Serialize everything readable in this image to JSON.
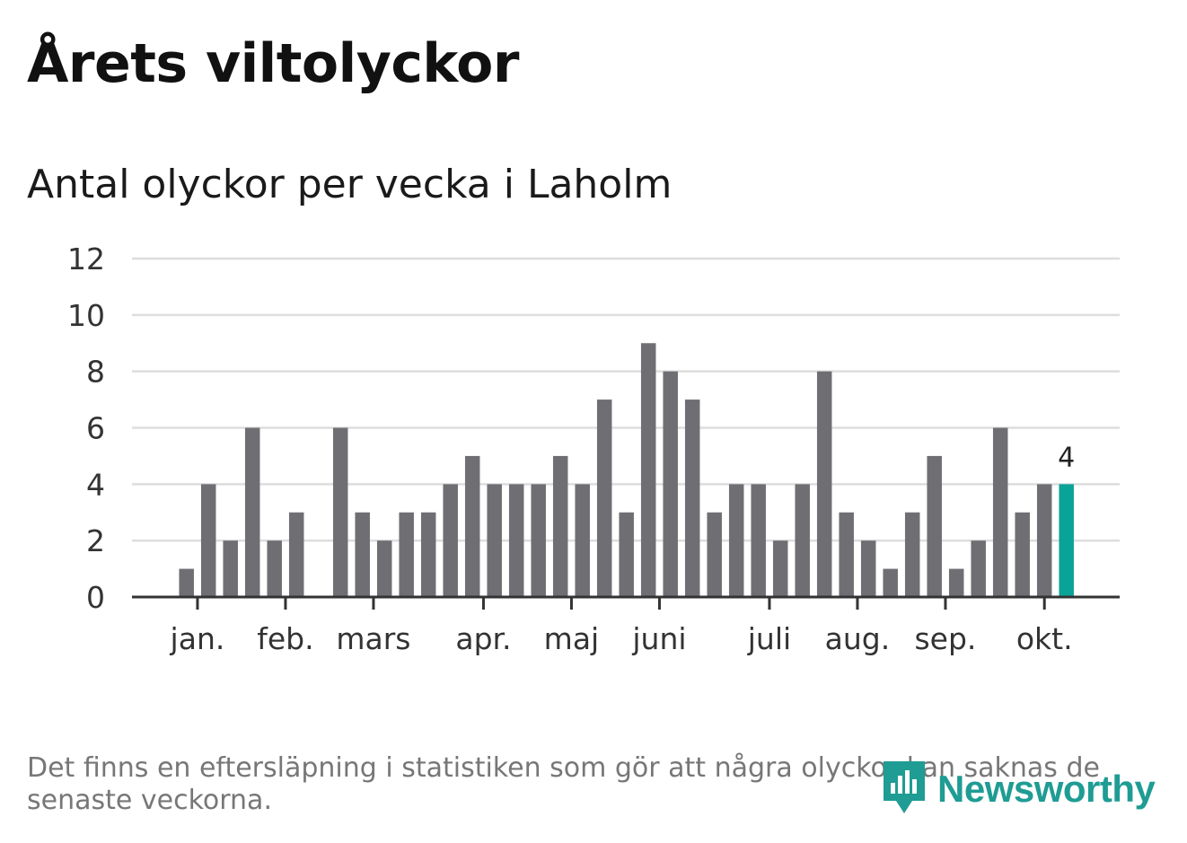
{
  "title": "Årets viltolyckor",
  "subtitle": "Antal olyckor per vecka i Laholm",
  "note": "Det finns en eftersläpning i statistiken som gör att några olyckor kan saknas de senaste veckorna.",
  "brand": {
    "name": "Newsworthy",
    "color": "#1f9c94",
    "icon": "newsworthy-logo-icon"
  },
  "colors": {
    "bar": "#6f6e73",
    "highlight": "#0aa398",
    "grid": "#dddddd",
    "axis": "#333333"
  },
  "chart_data": {
    "type": "bar",
    "title": "Antal olyckor per vecka i Laholm",
    "xlabel": "",
    "ylabel": "",
    "ylim": [
      0,
      12
    ],
    "yticks": [
      0,
      2,
      4,
      6,
      8,
      10,
      12
    ],
    "grid": true,
    "weeks": [
      1,
      2,
      3,
      4,
      5,
      6,
      7,
      8,
      9,
      10,
      11,
      12,
      13,
      14,
      15,
      16,
      17,
      18,
      19,
      20,
      21,
      22,
      23,
      24,
      25,
      26,
      27,
      28,
      29,
      30,
      31,
      32,
      33,
      34,
      35,
      36,
      37,
      38,
      39,
      40,
      41,
      42
    ],
    "values": [
      0,
      1,
      4,
      2,
      6,
      2,
      3,
      0,
      6,
      3,
      2,
      3,
      3,
      4,
      5,
      4,
      4,
      4,
      5,
      4,
      7,
      3,
      9,
      8,
      7,
      3,
      4,
      4,
      2,
      4,
      8,
      3,
      2,
      1,
      3,
      5,
      1,
      2,
      6,
      3,
      4,
      4
    ],
    "highlight_index": 41,
    "highlight_label": "4",
    "month_ticks": [
      {
        "label": "jan.",
        "week_pos": 2.5
      },
      {
        "label": "feb.",
        "week_pos": 6.5
      },
      {
        "label": "mars",
        "week_pos": 10.5
      },
      {
        "label": "apr.",
        "week_pos": 15.5
      },
      {
        "label": "maj",
        "week_pos": 19.5
      },
      {
        "label": "juni",
        "week_pos": 23.5
      },
      {
        "label": "juli",
        "week_pos": 28.5
      },
      {
        "label": "aug.",
        "week_pos": 32.5
      },
      {
        "label": "sep.",
        "week_pos": 36.5
      },
      {
        "label": "okt.",
        "week_pos": 41.0
      }
    ]
  }
}
